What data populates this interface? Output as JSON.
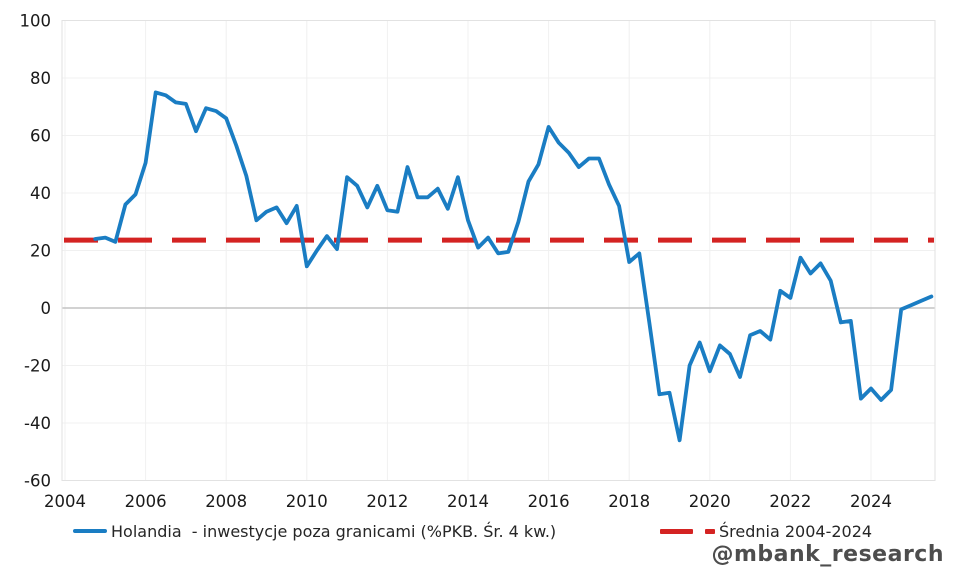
{
  "watermark": "@mbank_research",
  "colors": {
    "series_blue": "#1a7dc3",
    "average_red": "#d42322",
    "tick_text": "#1a1a1a",
    "legend_text": "#262626",
    "watermark_text": "#4d4d4d",
    "gridline": "#f0f0f0",
    "zero_line": "#c3c3c3",
    "plot_border": "#e2e2e2"
  },
  "legend": {
    "holandia_label": "Holandia  - inwestycje poza granicami (%PKB. Śr. 4 kw.)",
    "average_label": "Średnia 2004-2024"
  },
  "chart_data": {
    "type": "line",
    "title": "",
    "xlabel": "",
    "ylabel": "",
    "grid": true,
    "legend_position": "bottom",
    "xlim": [
      2003.9,
      2025.65
    ],
    "ylim": [
      -60,
      100
    ],
    "x_ticks": [
      2004,
      2006,
      2008,
      2010,
      2012,
      2014,
      2016,
      2018,
      2020,
      2022,
      2024
    ],
    "y_ticks": [
      100,
      80,
      60,
      40,
      20,
      0,
      -20,
      -40,
      -60
    ],
    "x": [
      2004.75,
      2005.0,
      2005.25,
      2005.5,
      2005.75,
      2006.0,
      2006.25,
      2006.5,
      2006.75,
      2007.0,
      2007.25,
      2007.5,
      2007.75,
      2008.0,
      2008.25,
      2008.5,
      2008.75,
      2009.0,
      2009.25,
      2009.5,
      2009.75,
      2010.0,
      2010.25,
      2010.5,
      2010.75,
      2011.0,
      2011.25,
      2011.5,
      2011.75,
      2012.0,
      2012.25,
      2012.5,
      2012.75,
      2013.0,
      2013.25,
      2013.5,
      2013.75,
      2014.0,
      2014.25,
      2014.5,
      2014.75,
      2015.0,
      2015.25,
      2015.5,
      2015.75,
      2016.0,
      2016.25,
      2016.5,
      2016.75,
      2017.0,
      2017.25,
      2017.5,
      2017.75,
      2018.0,
      2018.25,
      2018.5,
      2018.75,
      2019.0,
      2019.25,
      2019.5,
      2019.75,
      2020.0,
      2020.25,
      2020.5,
      2020.75,
      2021.0,
      2021.25,
      2021.5,
      2021.75,
      2022.0,
      2022.25,
      2022.5,
      2022.75,
      2023.0,
      2023.25,
      2023.5,
      2023.75,
      2024.0,
      2024.25,
      2024.5,
      2024.75,
      2025.0,
      2025.25,
      2025.5
    ],
    "series": [
      {
        "name": "Holandia  - inwestycje poza granicami (%PKB. Śr. 4 kw.)",
        "color": "#1a7dc3",
        "style": "solid",
        "values": [
          24,
          24.5,
          23,
          36,
          39.5,
          50.5,
          75,
          74,
          71.5,
          71,
          61.5,
          69.5,
          68.5,
          66,
          56.5,
          46,
          30.5,
          33.5,
          35,
          29.5,
          35.5,
          14.5,
          20,
          25,
          20.5,
          45.5,
          42.5,
          35,
          42.5,
          34,
          33.5,
          49,
          38.5,
          38.5,
          41.5,
          34.5,
          45.5,
          30.5,
          21,
          24.5,
          19,
          19.5,
          30,
          44,
          50,
          63,
          57.5,
          54,
          49,
          52,
          52,
          43,
          35.5,
          16,
          19,
          -5,
          -30,
          -29.5,
          -46,
          -20,
          -12,
          -22,
          -13,
          -16,
          -24,
          -9.5,
          -8,
          -11,
          6,
          3.5,
          17.5,
          12,
          15.5,
          9.5,
          -5,
          -4.5,
          -31.5,
          -28,
          -32,
          -28.5,
          -0.5,
          1,
          2.5,
          4
        ]
      },
      {
        "name": "Średnia 2004-2024",
        "color": "#d42322",
        "style": "dashed",
        "constant_value": 23.6
      }
    ]
  }
}
